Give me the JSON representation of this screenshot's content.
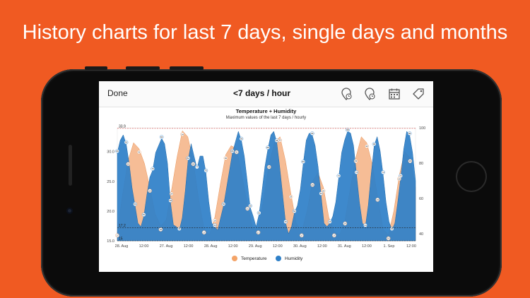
{
  "headline": "History charts for last 7 days, single days and months",
  "navbar": {
    "done_label": "Done",
    "title": "<7 days / hour",
    "icons": [
      "pin-clock-icon",
      "pin-clock-icon",
      "calendar-icon",
      "tag-icon"
    ]
  },
  "colors": {
    "background": "#F05A22",
    "temperature": "#F4B184",
    "humidity": "#2F80C8",
    "reference_line": "#d9534f"
  },
  "chart_data": {
    "type": "area",
    "title": "Temperature + Humidity",
    "subtitle": "Maximum values of the last 7 days / hourly",
    "x_ticks": [
      "28. Aug",
      "12:00",
      "27. Aug",
      "12:00",
      "28. Aug",
      "12:00",
      "29. Aug",
      "12:00",
      "30. Aug",
      "12:00",
      "31. Aug",
      "12:00",
      "1. Sep",
      "12:00"
    ],
    "y_left": {
      "ticks": [
        "30.0",
        "25.0",
        "20.0",
        "15.0"
      ],
      "ylim": [
        15,
        34
      ]
    },
    "y_right": {
      "ticks": [
        "100",
        "80",
        "60",
        "40"
      ],
      "ylim": [
        36,
        100
      ]
    },
    "reference_lines": [
      {
        "label": "33.9",
        "value": 33.9,
        "style": "dashed",
        "color": "red"
      },
      {
        "label": "17.2",
        "value": 17.2,
        "style": "dashed",
        "color": "black"
      },
      {
        "label": "15",
        "value": 15.0,
        "style": "dashed",
        "color": "black"
      }
    ],
    "series": [
      {
        "name": "Temperature",
        "axis": "left",
        "values": [
          16.5,
          23.0,
          28.5,
          31.5,
          30.5,
          28.0,
          24.0,
          19.5,
          17.5,
          18.5,
          23.5,
          29.0,
          33.5,
          32.5,
          28.5,
          22.0,
          17.0,
          16.0,
          19.0,
          24.5,
          29.5,
          31.0,
          30.5,
          26.0,
          21.0,
          17.0,
          17.0,
          22.0,
          28.0,
          31.5,
          32.5,
          28.5,
          23.0,
          18.0,
          16.5,
          20.0,
          25.0,
          26.5,
          24.0,
          19.0,
          16.5,
          16.0,
          18.5,
          24.0,
          29.0,
          32.5,
          31.5,
          28.0,
          22.5,
          17.0,
          16.0,
          20.0,
          26.0,
          30.0,
          29.0,
          24.0
        ]
      },
      {
        "name": "Humidity",
        "axis": "right",
        "values": [
          86,
          93,
          96,
          91,
          80,
          66,
          56,
          46,
          44,
          50,
          62,
          72,
          76,
          86,
          90,
          94,
          91,
          80,
          58,
          45,
          44,
          42,
          49,
          64,
          82,
          91,
          84,
          77,
          84,
          84,
          75,
          58,
          46,
          44,
          42,
          49,
          56,
          66,
          76,
          86,
          92,
          98,
          93,
          84,
          70,
          55,
          50,
          44,
          51,
          64,
          78,
          88,
          96,
          98,
          92,
          78,
          62,
          46,
          40,
          44,
          52,
          56,
          65,
          80,
          93,
          97,
          96,
          90,
          78,
          62,
          46,
          44,
          46,
          50,
          58,
          72,
          86,
          93,
          98,
          97,
          90,
          74,
          58,
          46,
          44,
          56,
          74,
          90,
          95,
          87,
          74,
          58,
          47,
          42,
          46,
          58,
          72,
          88,
          98,
          96,
          86,
          70
        ]
      }
    ],
    "legend": [
      "Temperature",
      "Humidity"
    ],
    "legend_position": "bottom",
    "grid": false
  }
}
